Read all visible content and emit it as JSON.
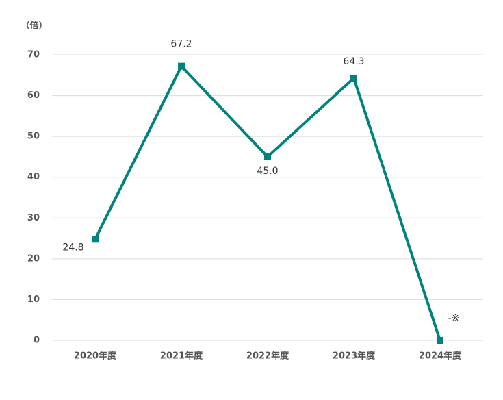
{
  "chart_data": {
    "type": "line",
    "y_label": "（倍）",
    "categories": [
      "2020年度",
      "2021年度",
      "2022年度",
      "2023年度",
      "2024年度"
    ],
    "series": [
      {
        "name": null,
        "color": "#00827f",
        "values": [
          24.8,
          67.2,
          45.0,
          64.3,
          0
        ],
        "value_labels": [
          "24.8",
          "67.2",
          "45.0",
          "64.3",
          "-※"
        ]
      }
    ],
    "ylim": [
      0,
      70
    ],
    "yticks": [
      0,
      10,
      20,
      30,
      40,
      50,
      60,
      70
    ],
    "grid": true
  }
}
